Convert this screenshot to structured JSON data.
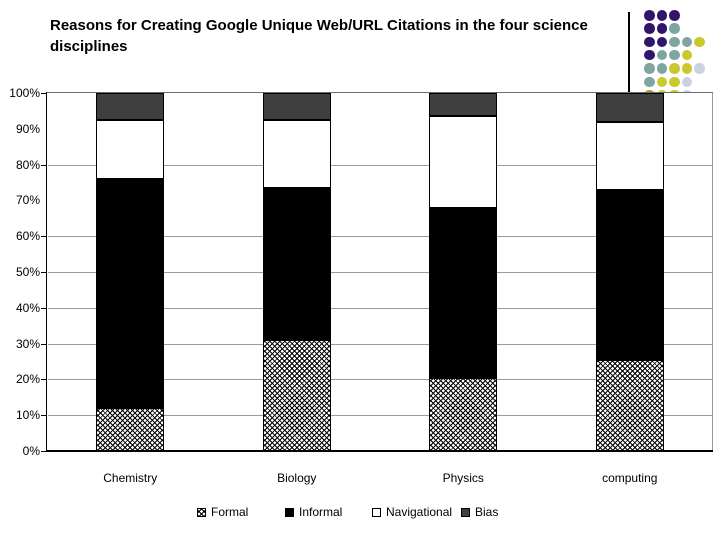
{
  "chart_data": {
    "type": "bar",
    "stacked": true,
    "units": "percent",
    "title": "Reasons for Creating Google Unique Web/URL Citations in the four science disciplines",
    "categories": [
      "Chemistry",
      "Biology",
      "Physics",
      "computing"
    ],
    "series": [
      {
        "name": "Formal",
        "style": "hatched",
        "values": [
          12,
          31,
          20.5,
          25.5
        ]
      },
      {
        "name": "Informal",
        "style": "black",
        "values": [
          64,
          42.5,
          47.5,
          47.5
        ]
      },
      {
        "name": "Navigational",
        "style": "white",
        "values": [
          16.5,
          19,
          25.5,
          19
        ]
      },
      {
        "name": "Bias",
        "style": "darkgray",
        "values": [
          7.5,
          7.5,
          6.5,
          8
        ]
      }
    ],
    "xlabel": "",
    "ylabel": "",
    "ylim": [
      0,
      100
    ],
    "ytick_labels": [
      "100%",
      "90%",
      "80%",
      "70%",
      "60%",
      "50%",
      "40%",
      "30%",
      "20%",
      "10%",
      "0%"
    ],
    "gridline_percents": [
      80,
      60,
      50,
      40,
      30,
      20,
      10
    ],
    "tick_percents": [
      100,
      80,
      60,
      50,
      40,
      30,
      20,
      10,
      0
    ],
    "grid": true,
    "legend_position": "bottom",
    "legend_labels": [
      "Formal",
      "Informal",
      "Navigational",
      "Bias"
    ]
  },
  "colors": {
    "bias_fill": "#3f3f3f",
    "informal_fill": "#000000",
    "navigational_fill": "#ffffff",
    "gridline": "#9b9b9b",
    "axis": "#000000"
  },
  "decoration": {
    "colors": {
      "purple": "#31156b",
      "teal": "#7fa5a1",
      "yellow": "#cbc72f",
      "lavender": "#cbd0e2",
      "gold": "#c2932f"
    },
    "rows": [
      [
        "purple",
        "purple",
        "purple"
      ],
      [
        "purple",
        "purple",
        "teal"
      ],
      [
        "purple",
        "purple",
        "teal",
        "teal",
        "yellow"
      ],
      [
        "purple",
        "teal",
        "teal",
        "yellow"
      ],
      [
        "teal",
        "teal",
        "yellow",
        "yellow",
        "lavender"
      ],
      [
        "teal",
        "yellow",
        "yellow",
        "lavender"
      ],
      [
        "gold",
        "yellow",
        "yellow",
        "lavender"
      ]
    ]
  }
}
